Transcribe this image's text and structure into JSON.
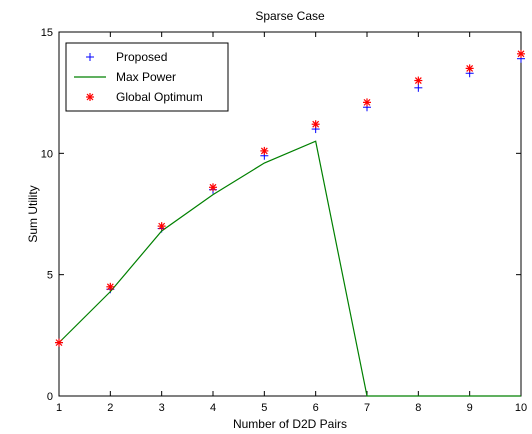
{
  "chart_data": {
    "type": "line",
    "title": "Sparse Case",
    "xlabel": "Number of D2D Pairs",
    "ylabel": "Sum Utility",
    "xlim": [
      1,
      10
    ],
    "ylim": [
      0,
      15
    ],
    "xticks": [
      1,
      2,
      3,
      4,
      5,
      6,
      7,
      8,
      9,
      10
    ],
    "yticks": [
      0,
      5,
      10,
      15
    ],
    "legend_position": "top-left",
    "grid": false,
    "series": [
      {
        "name": "Proposed",
        "style": "marker",
        "marker": "plus",
        "color": "#0000ff",
        "x": [
          1,
          2,
          3,
          4,
          5,
          6,
          7,
          8,
          9,
          10
        ],
        "values": [
          2.2,
          4.4,
          6.9,
          8.5,
          9.9,
          11.0,
          11.9,
          12.7,
          13.3,
          13.9
        ]
      },
      {
        "name": "Max Power",
        "style": "line",
        "color": "#008000",
        "x": [
          1,
          2,
          3,
          4,
          5,
          6,
          7,
          8,
          9,
          10
        ],
        "values": [
          2.2,
          4.3,
          6.8,
          8.3,
          9.6,
          10.5,
          0,
          0,
          0,
          0
        ]
      },
      {
        "name": "Global Optimum",
        "style": "marker",
        "marker": "asterisk",
        "color": "#ff0000",
        "x": [
          1,
          2,
          3,
          4,
          5,
          6,
          7,
          8,
          9,
          10
        ],
        "values": [
          2.2,
          4.5,
          7.0,
          8.6,
          10.1,
          11.2,
          12.1,
          13.0,
          13.5,
          14.1
        ]
      }
    ]
  }
}
